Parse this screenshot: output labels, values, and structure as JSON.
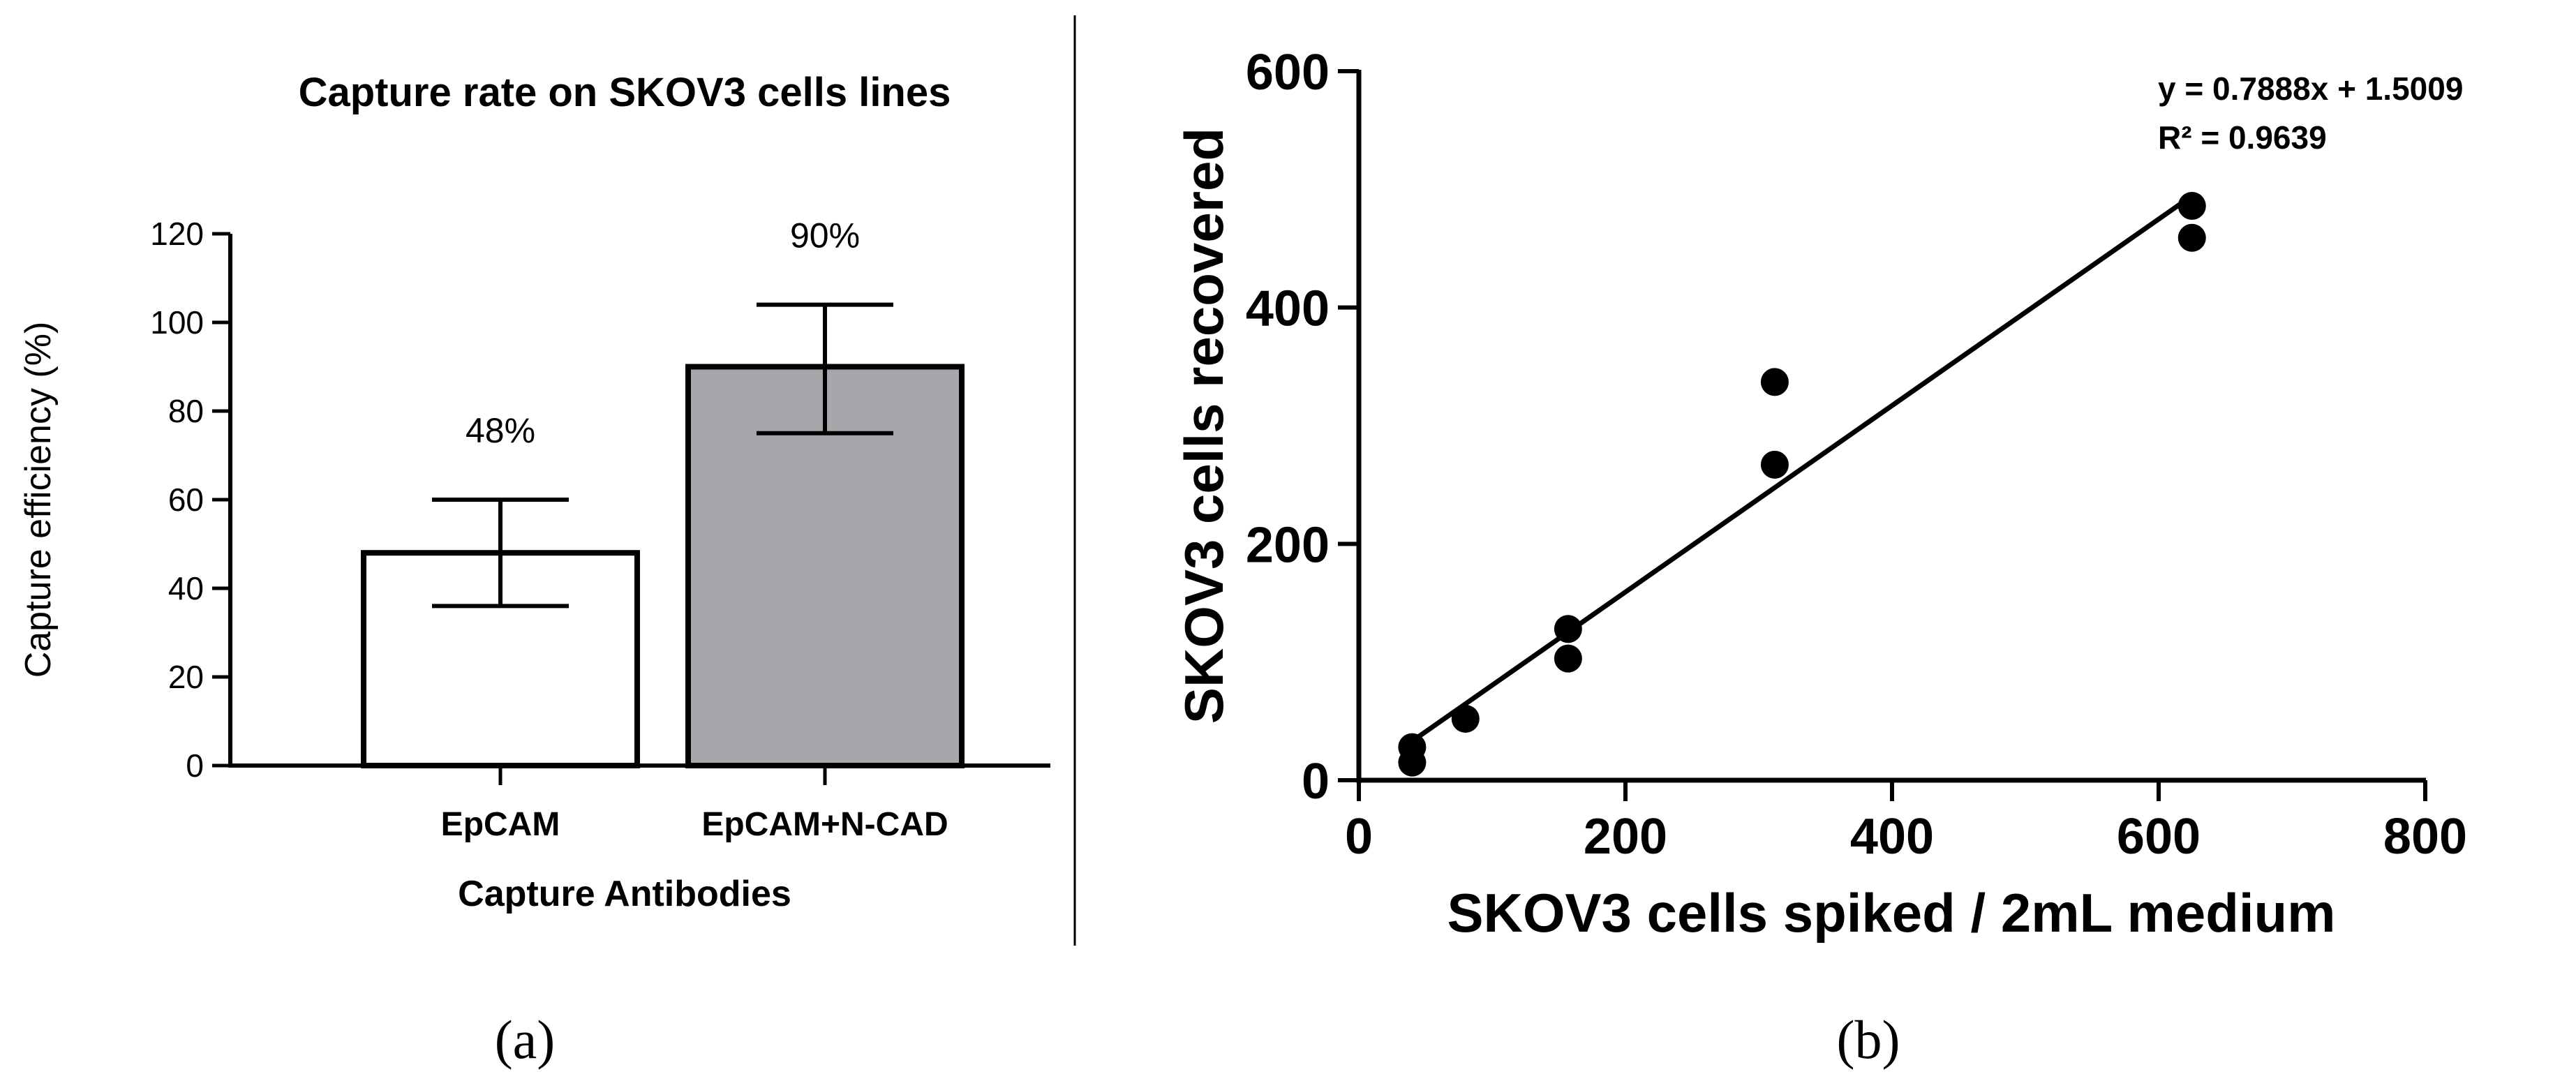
{
  "chart_data": [
    {
      "type": "bar",
      "title": "Capture rate on SKOV3 cells lines",
      "xlabel": "Capture Antibodies",
      "ylabel": "Capture efficiency (%)",
      "ylim": [
        0,
        120
      ],
      "yticks": [
        0,
        20,
        40,
        60,
        80,
        100,
        120
      ],
      "y_tick_labels": [
        "0",
        "20",
        "40",
        "60",
        "80",
        "100",
        "120"
      ],
      "categories": [
        "EpCAM",
        "EpCAM+N-CAD"
      ],
      "values": [
        48,
        90
      ],
      "error_low": [
        36,
        75
      ],
      "error_high": [
        60,
        104
      ],
      "data_labels": [
        "48%",
        "90%"
      ],
      "bar_colors": [
        "#ffffff",
        "#a7a6ab"
      ],
      "grid": false,
      "panel_label": "(a)"
    },
    {
      "type": "scatter",
      "xlabel": "SKOV3 cells spiked / 2mL medium",
      "ylabel": "SKOV3 cells recovered",
      "xlim": [
        0,
        800
      ],
      "ylim": [
        0,
        600
      ],
      "xticks": [
        0,
        200,
        400,
        600,
        800
      ],
      "x_tick_labels": [
        "0",
        "200",
        "400",
        "600",
        "800"
      ],
      "yticks": [
        0,
        200,
        400,
        600
      ],
      "y_tick_labels": [
        "0",
        "200",
        "400",
        "600"
      ],
      "points": [
        {
          "x": 40,
          "y": 28
        },
        {
          "x": 40,
          "y": 15
        },
        {
          "x": 80,
          "y": 52
        },
        {
          "x": 157,
          "y": 128
        },
        {
          "x": 157,
          "y": 103
        },
        {
          "x": 312,
          "y": 337
        },
        {
          "x": 312,
          "y": 267
        },
        {
          "x": 625,
          "y": 486
        },
        {
          "x": 625,
          "y": 459
        }
      ],
      "fit_line": {
        "slope": 0.7888,
        "intercept": 1.5009,
        "x_range": [
          40,
          625
        ]
      },
      "equation_text": "y = 0.7888x + 1.5009",
      "r2_text": "R² = 0.9639",
      "grid": false,
      "panel_label": "(b)"
    }
  ]
}
